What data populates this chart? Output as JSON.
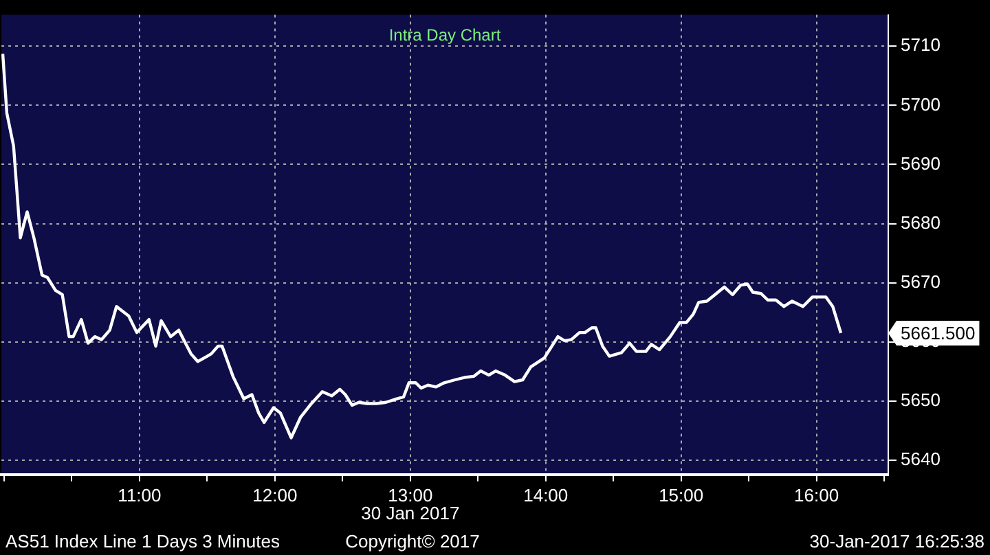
{
  "chart_data": {
    "type": "line",
    "title": "Intra Day Chart",
    "xlabel": "30 Jan 2017",
    "x": [
      9.99,
      10.02,
      10.07,
      10.12,
      10.17,
      10.22,
      10.28,
      10.32,
      10.38,
      10.43,
      10.48,
      10.51,
      10.57,
      10.62,
      10.67,
      10.72,
      10.78,
      10.83,
      10.92,
      10.98,
      11.07,
      11.12,
      11.16,
      11.23,
      11.29,
      11.38,
      11.43,
      11.5,
      11.53,
      11.58,
      11.61,
      11.69,
      11.77,
      11.83,
      11.88,
      11.92,
      11.99,
      12.04,
      12.12,
      12.19,
      12.27,
      12.35,
      12.42,
      12.48,
      12.52,
      12.57,
      12.62,
      12.68,
      12.75,
      12.82,
      12.9,
      12.95,
      12.99,
      13.04,
      13.08,
      13.13,
      13.19,
      13.25,
      13.33,
      13.4,
      13.47,
      13.52,
      13.58,
      13.63,
      13.7,
      13.77,
      13.83,
      13.89,
      13.99,
      14.09,
      14.14,
      14.19,
      14.25,
      14.29,
      14.34,
      14.37,
      14.42,
      14.47,
      14.56,
      14.62,
      14.67,
      14.74,
      14.78,
      14.84,
      14.92,
      14.99,
      15.04,
      15.09,
      15.13,
      15.19,
      15.25,
      15.32,
      15.38,
      15.44,
      15.49,
      15.53,
      15.59,
      15.64,
      15.7,
      15.76,
      15.82,
      15.9,
      15.97,
      16.07,
      16.12,
      16.18
    ],
    "series": [
      {
        "color": "#ffffff",
        "values": [
          5708.7,
          5698.7,
          5693.1,
          5677.6,
          5682.0,
          5677.6,
          5671.3,
          5670.9,
          5668.7,
          5668.0,
          5660.9,
          5660.9,
          5663.8,
          5659.8,
          5660.9,
          5660.4,
          5662.0,
          5666.0,
          5664.4,
          5661.6,
          5663.8,
          5659.3,
          5663.6,
          5660.9,
          5662.0,
          5658.0,
          5656.7,
          5657.6,
          5658.0,
          5659.3,
          5659.3,
          5654.2,
          5650.4,
          5651.1,
          5648.0,
          5646.4,
          5648.9,
          5648.0,
          5643.8,
          5647.3,
          5649.6,
          5651.6,
          5650.9,
          5652.0,
          5651.1,
          5649.3,
          5649.8,
          5649.6,
          5649.6,
          5649.8,
          5650.4,
          5650.7,
          5653.1,
          5653.1,
          5652.2,
          5652.7,
          5652.4,
          5653.1,
          5653.6,
          5654.0,
          5654.2,
          5655.1,
          5654.4,
          5655.1,
          5654.4,
          5653.3,
          5653.6,
          5655.8,
          5657.3,
          5660.9,
          5660.2,
          5660.4,
          5661.6,
          5661.6,
          5662.4,
          5662.4,
          5659.3,
          5657.6,
          5658.2,
          5659.8,
          5658.4,
          5658.4,
          5659.6,
          5658.7,
          5660.9,
          5663.3,
          5663.3,
          5664.7,
          5666.7,
          5666.9,
          5668.0,
          5669.3,
          5668.0,
          5669.6,
          5669.8,
          5668.4,
          5668.2,
          5667.1,
          5667.1,
          5666.0,
          5666.9,
          5666.0,
          5667.6,
          5667.6,
          5666.0,
          5661.5
        ]
      }
    ],
    "xlim": [
      9.98,
      16.53
    ],
    "xticks": [
      {
        "value": 10,
        "label": null
      },
      {
        "value": 10.5,
        "label": null
      },
      {
        "value": 11,
        "label": "11:00"
      },
      {
        "value": 11.5,
        "label": null
      },
      {
        "value": 12,
        "label": "12:00"
      },
      {
        "value": 12.5,
        "label": null
      },
      {
        "value": 13,
        "label": "13:00"
      },
      {
        "value": 13.5,
        "label": null
      },
      {
        "value": 14,
        "label": "14:00"
      },
      {
        "value": 14.5,
        "label": null
      },
      {
        "value": 15,
        "label": "15:00"
      },
      {
        "value": 15.5,
        "label": null
      },
      {
        "value": 16,
        "label": "16:00"
      },
      {
        "value": 16.5,
        "label": null
      }
    ],
    "ylim": [
      5637.6,
      5715.3
    ],
    "yticks": [
      5640,
      5650,
      5660,
      5670,
      5680,
      5690,
      5700,
      5710
    ],
    "grid": true,
    "legend": false,
    "marker": "none",
    "line_style": "solid",
    "annotations": [
      "5661.500",
      "AS51 Index Line 1 Days 3 Minutes",
      "Copyright© 2017",
      "30-Jan-2017 16:25:38"
    ]
  }
}
